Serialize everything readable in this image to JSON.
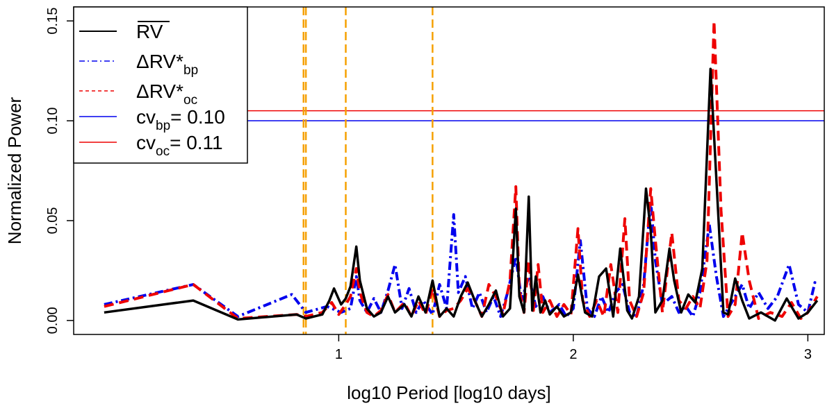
{
  "chart_data": {
    "type": "line",
    "title": "",
    "xlabel": "log10 Period [log10 days]",
    "ylabel": "Normalized Power",
    "xlim": [
      -0.13,
      3.07
    ],
    "ylim": [
      -0.007,
      0.157
    ],
    "xticks": [
      1,
      2,
      3
    ],
    "xtick_labels": [
      "1",
      "2",
      "3"
    ],
    "yticks": [
      0.0,
      0.05,
      0.1,
      0.15
    ],
    "ytick_labels": [
      "0.00",
      "0.05",
      "0.10",
      "0.15"
    ],
    "legend": {
      "position": "top-left",
      "entries": [
        {
          "key": "rv",
          "label": "RV",
          "sub": "",
          "overline": true
        },
        {
          "key": "bp",
          "label": "ΔRV*",
          "sub": "bp",
          "overline": false
        },
        {
          "key": "oc",
          "label": "ΔRV*",
          "sub": "oc",
          "overline": false
        },
        {
          "key": "cvbp",
          "label": "cv",
          "sub": "bp",
          "suffix": "= 0.10",
          "overline": false
        },
        {
          "key": "cvoc",
          "label": "cv",
          "sub": "oc",
          "suffix": "= 0.11",
          "overline": false
        }
      ]
    },
    "series": [
      {
        "key": "rv",
        "name": "RV mean",
        "color": "#000000",
        "style": "solid",
        "points": [
          [
            0.0,
            0.004
          ],
          [
            0.38,
            0.01
          ],
          [
            0.57,
            0.0005
          ],
          [
            0.82,
            0.003
          ],
          [
            0.86,
            0.001
          ],
          [
            0.93,
            0.003
          ],
          [
            0.96,
            0.01
          ],
          [
            0.98,
            0.016
          ],
          [
            1.01,
            0.008
          ],
          [
            1.03,
            0.011
          ],
          [
            1.05,
            0.017
          ],
          [
            1.075,
            0.037
          ],
          [
            1.09,
            0.02
          ],
          [
            1.12,
            0.006
          ],
          [
            1.15,
            0.002
          ],
          [
            1.18,
            0.004
          ],
          [
            1.21,
            0.012
          ],
          [
            1.24,
            0.004
          ],
          [
            1.28,
            0.008
          ],
          [
            1.31,
            0.002
          ],
          [
            1.34,
            0.012
          ],
          [
            1.37,
            0.004
          ],
          [
            1.4,
            0.02
          ],
          [
            1.43,
            0.002
          ],
          [
            1.46,
            0.006
          ],
          [
            1.49,
            0.002
          ],
          [
            1.52,
            0.012
          ],
          [
            1.55,
            0.019
          ],
          [
            1.58,
            0.01
          ],
          [
            1.61,
            0.002
          ],
          [
            1.64,
            0.008
          ],
          [
            1.67,
            0.015
          ],
          [
            1.7,
            0.002
          ],
          [
            1.73,
            0.006
          ],
          [
            1.755,
            0.056
          ],
          [
            1.77,
            0.012
          ],
          [
            1.79,
            0.004
          ],
          [
            1.81,
            0.062
          ],
          [
            1.825,
            0.005
          ],
          [
            1.84,
            0.022
          ],
          [
            1.86,
            0.004
          ],
          [
            1.88,
            0.01
          ],
          [
            1.9,
            0.003
          ],
          [
            1.93,
            0.007
          ],
          [
            1.96,
            0.002
          ],
          [
            1.99,
            0.004
          ],
          [
            2.02,
            0.023
          ],
          [
            2.05,
            0.004
          ],
          [
            2.08,
            0.002
          ],
          [
            2.11,
            0.022
          ],
          [
            2.14,
            0.026
          ],
          [
            2.17,
            0.002
          ],
          [
            2.2,
            0.036
          ],
          [
            2.23,
            0.005
          ],
          [
            2.25,
            0.001
          ],
          [
            2.28,
            0.012
          ],
          [
            2.31,
            0.066
          ],
          [
            2.33,
            0.045
          ],
          [
            2.35,
            0.004
          ],
          [
            2.38,
            0.01
          ],
          [
            2.41,
            0.036
          ],
          [
            2.43,
            0.02
          ],
          [
            2.46,
            0.004
          ],
          [
            2.49,
            0.013
          ],
          [
            2.52,
            0.009
          ],
          [
            2.55,
            0.026
          ],
          [
            2.585,
            0.126
          ],
          [
            2.615,
            0.06
          ],
          [
            2.64,
            0.004
          ],
          [
            2.66,
            0.003
          ],
          [
            2.69,
            0.021
          ],
          [
            2.72,
            0.01
          ],
          [
            2.75,
            0.001
          ],
          [
            2.8,
            0.004
          ],
          [
            2.86,
            0.0
          ],
          [
            2.91,
            0.011
          ],
          [
            2.96,
            0.001
          ],
          [
            3.0,
            0.004
          ],
          [
            3.04,
            0.01
          ]
        ]
      },
      {
        "key": "bp",
        "name": "dRV*bp",
        "color": "#0000ee",
        "style": "dashdot",
        "points": [
          [
            0.0,
            0.008
          ],
          [
            0.38,
            0.018
          ],
          [
            0.57,
            0.002
          ],
          [
            0.8,
            0.013
          ],
          [
            0.86,
            0.004
          ],
          [
            0.95,
            0.007
          ],
          [
            1.01,
            0.004
          ],
          [
            1.05,
            0.006
          ],
          [
            1.075,
            0.022
          ],
          [
            1.09,
            0.01
          ],
          [
            1.12,
            0.004
          ],
          [
            1.15,
            0.011
          ],
          [
            1.18,
            0.004
          ],
          [
            1.21,
            0.015
          ],
          [
            1.24,
            0.028
          ],
          [
            1.27,
            0.006
          ],
          [
            1.3,
            0.016
          ],
          [
            1.33,
            0.004
          ],
          [
            1.36,
            0.01
          ],
          [
            1.4,
            0.003
          ],
          [
            1.43,
            0.018
          ],
          [
            1.46,
            0.006
          ],
          [
            1.49,
            0.053
          ],
          [
            1.51,
            0.014
          ],
          [
            1.54,
            0.022
          ],
          [
            1.57,
            0.006
          ],
          [
            1.6,
            0.014
          ],
          [
            1.63,
            0.004
          ],
          [
            1.66,
            0.012
          ],
          [
            1.69,
            0.002
          ],
          [
            1.72,
            0.014
          ],
          [
            1.755,
            0.032
          ],
          [
            1.78,
            0.01
          ],
          [
            1.81,
            0.022
          ],
          [
            1.84,
            0.007
          ],
          [
            1.87,
            0.012
          ],
          [
            1.9,
            0.004
          ],
          [
            1.94,
            0.008
          ],
          [
            1.97,
            0.002
          ],
          [
            2.0,
            0.006
          ],
          [
            2.03,
            0.04
          ],
          [
            2.06,
            0.006
          ],
          [
            2.09,
            0.002
          ],
          [
            2.12,
            0.012
          ],
          [
            2.15,
            0.004
          ],
          [
            2.18,
            0.014
          ],
          [
            2.21,
            0.018
          ],
          [
            2.24,
            0.004
          ],
          [
            2.27,
            0.002
          ],
          [
            2.3,
            0.018
          ],
          [
            2.33,
            0.06
          ],
          [
            2.35,
            0.03
          ],
          [
            2.38,
            0.008
          ],
          [
            2.42,
            0.012
          ],
          [
            2.45,
            0.004
          ],
          [
            2.48,
            0.007
          ],
          [
            2.51,
            0.002
          ],
          [
            2.54,
            0.014
          ],
          [
            2.58,
            0.048
          ],
          [
            2.61,
            0.022
          ],
          [
            2.64,
            0.002
          ],
          [
            2.68,
            0.01
          ],
          [
            2.72,
            0.018
          ],
          [
            2.75,
            0.006
          ],
          [
            2.79,
            0.014
          ],
          [
            2.83,
            0.006
          ],
          [
            2.87,
            0.012
          ],
          [
            2.92,
            0.028
          ],
          [
            2.96,
            0.008
          ],
          [
            3.0,
            0.004
          ],
          [
            3.03,
            0.019
          ],
          [
            3.04,
            0.018
          ]
        ]
      },
      {
        "key": "oc",
        "name": "dRV*oc",
        "color": "#ee0000",
        "style": "dashed",
        "points": [
          [
            0.0,
            0.007
          ],
          [
            0.38,
            0.018
          ],
          [
            0.57,
            0.001
          ],
          [
            0.82,
            0.003
          ],
          [
            0.86,
            0.002
          ],
          [
            0.93,
            0.004
          ],
          [
            0.97,
            0.009
          ],
          [
            1.0,
            0.003
          ],
          [
            1.03,
            0.008
          ],
          [
            1.05,
            0.012
          ],
          [
            1.075,
            0.026
          ],
          [
            1.09,
            0.014
          ],
          [
            1.12,
            0.004
          ],
          [
            1.15,
            0.002
          ],
          [
            1.18,
            0.005
          ],
          [
            1.21,
            0.013
          ],
          [
            1.24,
            0.004
          ],
          [
            1.28,
            0.009
          ],
          [
            1.31,
            0.002
          ],
          [
            1.34,
            0.01
          ],
          [
            1.37,
            0.003
          ],
          [
            1.4,
            0.016
          ],
          [
            1.43,
            0.002
          ],
          [
            1.46,
            0.005
          ],
          [
            1.49,
            0.006
          ],
          [
            1.52,
            0.01
          ],
          [
            1.55,
            0.016
          ],
          [
            1.58,
            0.01
          ],
          [
            1.61,
            0.002
          ],
          [
            1.64,
            0.018
          ],
          [
            1.67,
            0.012
          ],
          [
            1.7,
            0.003
          ],
          [
            1.73,
            0.02
          ],
          [
            1.755,
            0.067
          ],
          [
            1.77,
            0.015
          ],
          [
            1.79,
            0.004
          ],
          [
            1.81,
            0.03
          ],
          [
            1.83,
            0.005
          ],
          [
            1.85,
            0.028
          ],
          [
            1.87,
            0.004
          ],
          [
            1.9,
            0.01
          ],
          [
            1.93,
            0.002
          ],
          [
            1.96,
            0.008
          ],
          [
            1.99,
            0.003
          ],
          [
            2.02,
            0.046
          ],
          [
            2.04,
            0.01
          ],
          [
            2.07,
            0.002
          ],
          [
            2.1,
            0.01
          ],
          [
            2.13,
            0.002
          ],
          [
            2.16,
            0.028
          ],
          [
            2.19,
            0.004
          ],
          [
            2.22,
            0.051
          ],
          [
            2.24,
            0.01
          ],
          [
            2.27,
            0.002
          ],
          [
            2.3,
            0.014
          ],
          [
            2.33,
            0.066
          ],
          [
            2.35,
            0.04
          ],
          [
            2.38,
            0.004
          ],
          [
            2.42,
            0.044
          ],
          [
            2.45,
            0.01
          ],
          [
            2.48,
            0.006
          ],
          [
            2.51,
            0.012
          ],
          [
            2.54,
            0.006
          ],
          [
            2.57,
            0.03
          ],
          [
            2.6,
            0.15
          ],
          [
            2.63,
            0.055
          ],
          [
            2.66,
            0.002
          ],
          [
            2.69,
            0.008
          ],
          [
            2.72,
            0.044
          ],
          [
            2.75,
            0.02
          ],
          [
            2.79,
            0.001
          ],
          [
            2.84,
            0.004
          ],
          [
            2.89,
            0.002
          ],
          [
            2.93,
            0.009
          ],
          [
            2.97,
            0.001
          ],
          [
            3.0,
            0.004
          ],
          [
            3.04,
            0.012
          ]
        ]
      }
    ],
    "horizontal_lines": [
      {
        "key": "cvbp",
        "y": 0.1,
        "color": "#0000ee",
        "style": "solid"
      },
      {
        "key": "cvoc",
        "y": 0.105,
        "color": "#ee0000",
        "style": "solid"
      }
    ],
    "vertical_lines": [
      {
        "x": 0.85,
        "color": "#f5a000",
        "style": "dashed"
      },
      {
        "x": 0.86,
        "color": "#f5a000",
        "style": "dashed"
      },
      {
        "x": 1.03,
        "color": "#f5a000",
        "style": "dashed"
      },
      {
        "x": 1.4,
        "color": "#f5a000",
        "style": "dashed"
      }
    ]
  }
}
